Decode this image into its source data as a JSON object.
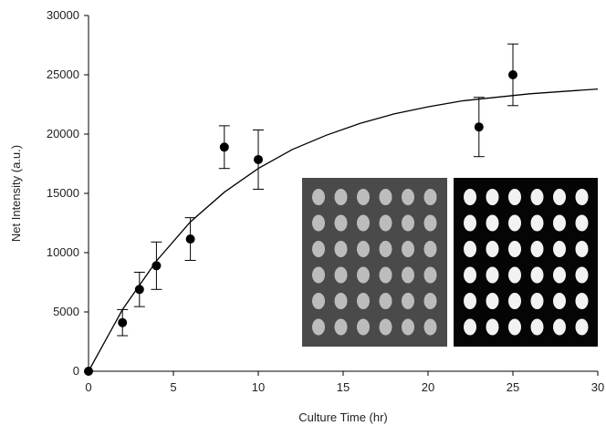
{
  "chart_data": {
    "type": "scatter",
    "x_label": "Culture Time (hr)",
    "y_label": "Net Intensity (a.u.)",
    "xlim": [
      0,
      30
    ],
    "xticks": [
      0,
      5,
      10,
      15,
      20,
      25,
      30
    ],
    "ylim": [
      0,
      30000
    ],
    "yticks": [
      0,
      5000,
      10000,
      15000,
      20000,
      25000,
      30000
    ],
    "series": [
      {
        "color": "#000000",
        "x": [
          0,
          2,
          3,
          4,
          6,
          8,
          10,
          23,
          25
        ],
        "values": [
          0,
          4100,
          6900,
          8900,
          11150,
          18900,
          17850,
          20600,
          25000
        ],
        "errors": [
          null,
          1100,
          1450,
          2000,
          1800,
          1800,
          2500,
          2500,
          2600
        ]
      },
      {
        "type": "line",
        "color": "#000000",
        "x": [
          0,
          2,
          4,
          6,
          8,
          10,
          12,
          14,
          16,
          18,
          20,
          22,
          24,
          26,
          28,
          30
        ],
        "values": [
          0,
          5200,
          9300,
          12600,
          15100,
          17100,
          18700,
          19900,
          20900,
          21700,
          22300,
          22800,
          23100,
          23400,
          23600,
          23800
        ]
      }
    ]
  }
}
